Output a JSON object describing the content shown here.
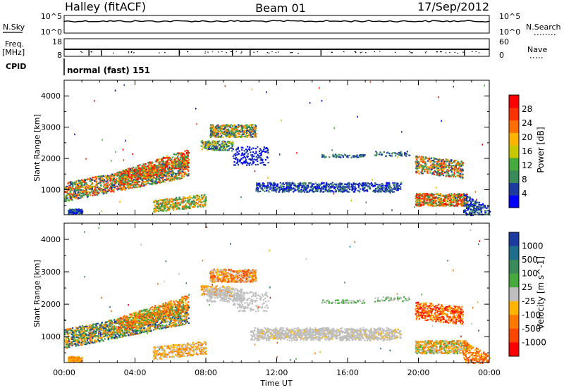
{
  "header": {
    "station": "Halley (fitACF)",
    "beam": "Beam 01",
    "date": "17/Sep/2012"
  },
  "params": {
    "nsky_label": "N.Sky",
    "nsky_ticks": [
      "10^5",
      "10^0"
    ],
    "nsearch_label": "N.Search",
    "nsearch_ticks": [
      "10^5",
      "10^0"
    ],
    "freq_label": "Freq.",
    "freq_unit": "[MHz]",
    "freq_ticks": [
      "18",
      "8"
    ],
    "nave_label": "Nave",
    "nave_ticks": [
      "60",
      "0"
    ],
    "cpid_label": "CPID",
    "cpid_text": "normal (fast) 151"
  },
  "colors": {
    "power_scale": [
      "#0000ff",
      "#1e3ca0",
      "#3a8a5a",
      "#46aa3c",
      "#c8c800",
      "#ffb400",
      "#ff6e00",
      "#ff3200",
      "#ff0000"
    ],
    "velocity_scale": [
      "#1e3ca0",
      "#1e6e8c",
      "#3a8a5a",
      "#46aa3c",
      "#bebebe",
      "#ffb400",
      "#ff7800",
      "#ff4600",
      "#ff0000"
    ],
    "ground_scatter": "#bebebe"
  },
  "chart_data": [
    {
      "type": "heatmap",
      "panel": "power",
      "ylabel": "Slant Range [km]",
      "xlabel": "Time UT",
      "x_ticks": [
        "00:00",
        "04:00",
        "08:00",
        "12:00",
        "16:00",
        "20:00",
        "00:00"
      ],
      "y_ticks": [
        "1000",
        "2000",
        "3000",
        "4000"
      ],
      "ylim": [
        200,
        4500
      ],
      "colorbar_label": "Power [dB]",
      "colorbar_ticks": [
        "4",
        "8",
        "12",
        "16",
        "20",
        "24",
        "28"
      ],
      "colorbar_range": [
        0,
        32
      ]
    },
    {
      "type": "heatmap",
      "panel": "velocity",
      "ylabel": "Slant Range [km]",
      "xlabel": "Time UT",
      "x_ticks": [
        "00:00",
        "04:00",
        "08:00",
        "12:00",
        "16:00",
        "20:00",
        "00:00"
      ],
      "y_ticks": [
        "1000",
        "2000",
        "3000",
        "4000"
      ],
      "ylim": [
        200,
        4500
      ],
      "colorbar_label": "Velocity [m s^-1]",
      "colorbar_ticks": [
        "1000",
        "500",
        "100",
        "25",
        "-25",
        "-100",
        "-500",
        "-1000"
      ]
    }
  ],
  "axis_title": "Time UT"
}
